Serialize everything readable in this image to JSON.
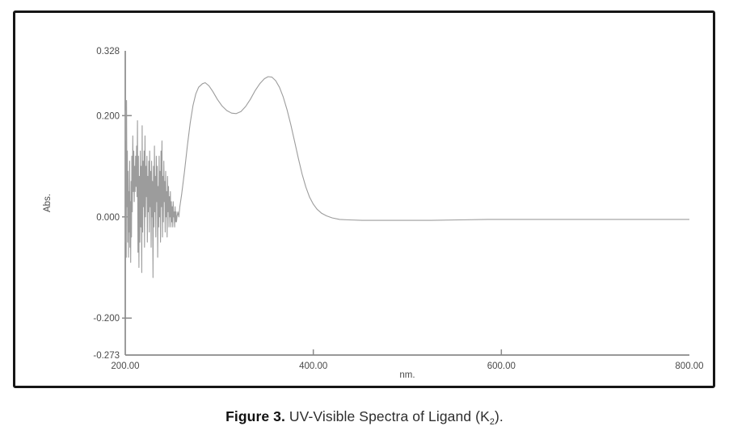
{
  "caption": {
    "label": "Figure 3.",
    "text": " UV-Visible Spectra of Ligand (K",
    "subscript": "2",
    "suffix": ")."
  },
  "chart_data": {
    "type": "line",
    "title": "",
    "xlabel": "nm.",
    "ylabel": "Abs.",
    "xlim": [
      200,
      800
    ],
    "ylim": [
      -0.273,
      0.328
    ],
    "grid": false,
    "legend": "none",
    "axis_color": "#8a8a8a",
    "line_color": "#9c9c9c",
    "x_ticks": [
      {
        "value": 200,
        "label": "200.00",
        "mark": false
      },
      {
        "value": 400,
        "label": "400.00",
        "mark": true
      },
      {
        "value": 600,
        "label": "600.00",
        "mark": true
      },
      {
        "value": 800,
        "label": "800.00",
        "mark": false
      }
    ],
    "y_ticks": [
      {
        "value": 0.328,
        "label": "0.328",
        "mark": false
      },
      {
        "value": 0.2,
        "label": "0.200",
        "mark": true
      },
      {
        "value": 0.0,
        "label": "0.000",
        "mark": true
      },
      {
        "value": -0.2,
        "label": "-0.200",
        "mark": true
      },
      {
        "value": -0.273,
        "label": "-0.273",
        "mark": false
      }
    ],
    "annotations": {
      "noise_region_nm": [
        200,
        258
      ],
      "peaks": [
        {
          "nm": 285,
          "abs": 0.265
        },
        {
          "nm": 354,
          "abs": 0.277
        }
      ],
      "valley": {
        "nm": 318,
        "abs": 0.204
      },
      "baseline_abs": -0.005
    },
    "series": [
      {
        "name": "UV-Vis absorbance of Ligand (K2)",
        "points": [
          [
            200.0,
            0.21
          ],
          [
            200.3,
            -0.05
          ],
          [
            200.6,
            0.15
          ],
          [
            201.0,
            -0.08
          ],
          [
            201.4,
            0.23
          ],
          [
            201.8,
            0.02
          ],
          [
            202.2,
            0.13
          ],
          [
            202.6,
            -0.05
          ],
          [
            203.0,
            0.09
          ],
          [
            203.4,
            -0.08
          ],
          [
            203.8,
            0.05
          ],
          [
            204.2,
            -0.03
          ],
          [
            204.6,
            0.11
          ],
          [
            205.0,
            -0.06
          ],
          [
            205.4,
            0.03
          ],
          [
            205.8,
            -0.09
          ],
          [
            206.2,
            0.07
          ],
          [
            206.6,
            -0.04
          ],
          [
            207.0,
            0.12
          ],
          [
            207.5,
            0.01
          ],
          [
            208.0,
            0.16
          ],
          [
            208.5,
            0.05
          ],
          [
            209.0,
            0.13
          ],
          [
            209.5,
            0.03
          ],
          [
            210.0,
            0.1
          ],
          [
            210.5,
            0.05
          ],
          [
            211.0,
            0.12
          ],
          [
            211.5,
            0.06
          ],
          [
            212.0,
            0.14
          ],
          [
            212.5,
            0.04
          ],
          [
            213.0,
            0.19
          ],
          [
            213.5,
            -0.07
          ],
          [
            214.0,
            0.12
          ],
          [
            214.5,
            -0.1
          ],
          [
            215.0,
            0.08
          ],
          [
            215.5,
            -0.05
          ],
          [
            216.0,
            0.13
          ],
          [
            216.5,
            -0.02
          ],
          [
            217.0,
            0.1
          ],
          [
            217.5,
            -0.11
          ],
          [
            218.0,
            0.18
          ],
          [
            218.5,
            -0.03
          ],
          [
            219.0,
            0.11
          ],
          [
            219.5,
            0.02
          ],
          [
            220.0,
            0.13
          ],
          [
            220.5,
            -0.06
          ],
          [
            221.0,
            0.16
          ],
          [
            221.5,
            0.0
          ],
          [
            222.0,
            0.1
          ],
          [
            222.5,
            0.04
          ],
          [
            223.0,
            0.12
          ],
          [
            223.5,
            -0.05
          ],
          [
            224.0,
            0.08
          ],
          [
            224.5,
            0.01
          ],
          [
            225.0,
            0.11
          ],
          [
            225.5,
            -0.03
          ],
          [
            226.0,
            0.13
          ],
          [
            226.5,
            0.02
          ],
          [
            227.0,
            0.09
          ],
          [
            227.5,
            -0.06
          ],
          [
            228.0,
            0.11
          ],
          [
            228.5,
            0.0
          ],
          [
            229.0,
            0.07
          ],
          [
            229.5,
            -0.12
          ],
          [
            230.0,
            0.1
          ],
          [
            230.5,
            -0.02
          ],
          [
            231.0,
            0.14
          ],
          [
            231.5,
            0.01
          ],
          [
            232.0,
            0.08
          ],
          [
            232.5,
            -0.04
          ],
          [
            233.0,
            0.12
          ],
          [
            233.5,
            0.03
          ],
          [
            234.0,
            0.1
          ],
          [
            234.5,
            -0.08
          ],
          [
            235.0,
            0.06
          ],
          [
            235.5,
            -0.02
          ],
          [
            236.0,
            0.12
          ],
          [
            236.5,
            0.0
          ],
          [
            237.0,
            0.09
          ],
          [
            237.5,
            -0.05
          ],
          [
            238.0,
            0.13
          ],
          [
            238.5,
            0.02
          ],
          [
            239.0,
            0.15
          ],
          [
            239.5,
            -0.04
          ],
          [
            240.0,
            0.08
          ],
          [
            240.5,
            -0.01
          ],
          [
            241.0,
            0.11
          ],
          [
            241.5,
            0.03
          ],
          [
            242.0,
            0.07
          ],
          [
            242.5,
            -0.03
          ],
          [
            243.0,
            0.09
          ],
          [
            243.5,
            0.0
          ],
          [
            244.0,
            0.05
          ],
          [
            244.5,
            -0.04
          ],
          [
            245.0,
            0.08
          ],
          [
            245.5,
            0.01
          ],
          [
            246.0,
            0.06
          ],
          [
            246.5,
            -0.02
          ],
          [
            247.0,
            0.04
          ],
          [
            247.5,
            0.0
          ],
          [
            248.0,
            0.05
          ],
          [
            248.5,
            -0.02
          ],
          [
            249.0,
            0.03
          ],
          [
            249.5,
            -0.01
          ],
          [
            250.0,
            0.02
          ],
          [
            250.5,
            -0.02
          ],
          [
            251.0,
            0.03
          ],
          [
            251.5,
            0.0
          ],
          [
            252.0,
            0.01
          ],
          [
            252.5,
            -0.02
          ],
          [
            253.0,
            0.02
          ],
          [
            253.5,
            -0.01
          ],
          [
            254.0,
            0.01
          ],
          [
            254.5,
            -0.01
          ],
          [
            255.0,
            0.0
          ],
          [
            256.0,
            0.01
          ],
          [
            257.0,
            0.0
          ],
          [
            258.0,
            0.02
          ],
          [
            260,
            0.045
          ],
          [
            263,
            0.09
          ],
          [
            266,
            0.14
          ],
          [
            269,
            0.185
          ],
          [
            272,
            0.22
          ],
          [
            275,
            0.243
          ],
          [
            278,
            0.256
          ],
          [
            282,
            0.263
          ],
          [
            285,
            0.265
          ],
          [
            289,
            0.259
          ],
          [
            293,
            0.248
          ],
          [
            298,
            0.232
          ],
          [
            303,
            0.219
          ],
          [
            308,
            0.21
          ],
          [
            313,
            0.205
          ],
          [
            318,
            0.204
          ],
          [
            323,
            0.208
          ],
          [
            328,
            0.218
          ],
          [
            333,
            0.232
          ],
          [
            338,
            0.249
          ],
          [
            343,
            0.263
          ],
          [
            348,
            0.273
          ],
          [
            352,
            0.277
          ],
          [
            356,
            0.276
          ],
          [
            360,
            0.269
          ],
          [
            364,
            0.256
          ],
          [
            368,
            0.237
          ],
          [
            372,
            0.212
          ],
          [
            376,
            0.183
          ],
          [
            380,
            0.15
          ],
          [
            384,
            0.116
          ],
          [
            388,
            0.085
          ],
          [
            392,
            0.059
          ],
          [
            396,
            0.039
          ],
          [
            400,
            0.025
          ],
          [
            404,
            0.015
          ],
          [
            409,
            0.007
          ],
          [
            414,
            0.002
          ],
          [
            420,
            -0.002
          ],
          [
            428,
            -0.005
          ],
          [
            438,
            -0.006
          ],
          [
            452,
            -0.007
          ],
          [
            470,
            -0.007
          ],
          [
            495,
            -0.007
          ],
          [
            525,
            -0.007
          ],
          [
            555,
            -0.006
          ],
          [
            585,
            -0.005
          ],
          [
            615,
            -0.005
          ],
          [
            650,
            -0.005
          ],
          [
            690,
            -0.005
          ],
          [
            725,
            -0.005
          ],
          [
            760,
            -0.005
          ],
          [
            800,
            -0.005
          ]
        ]
      }
    ]
  }
}
